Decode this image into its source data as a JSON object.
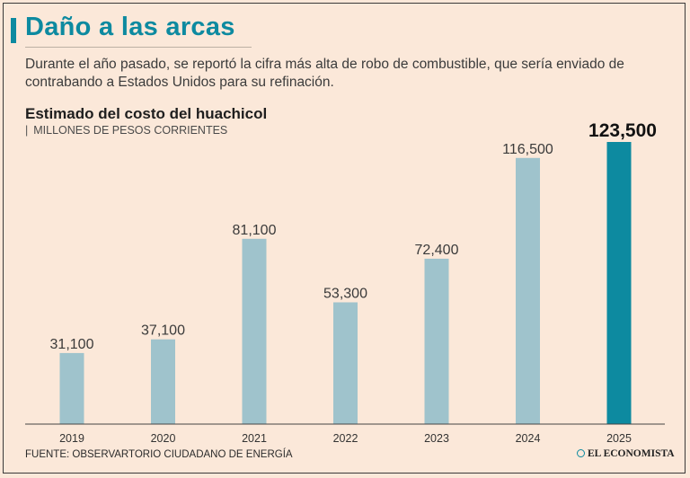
{
  "header": {
    "title": "Daño a las arcas",
    "subtitle": "Durante el año pasado, se reportó la cifra más alta de robo de combustible, que sería enviado de contrabando a Estados Unidos para su refinación."
  },
  "chart_data": {
    "type": "bar",
    "title": "Estimado del costo del huachicol",
    "subtitle": "MILLONES DE PESOS CORRIENTES",
    "categories": [
      "2019",
      "2020",
      "2021",
      "2022",
      "2023",
      "2024",
      "2025"
    ],
    "values": [
      31100,
      37100,
      81100,
      53300,
      72400,
      116500,
      123500
    ],
    "labels": [
      "31,100",
      "37,100",
      "81,100",
      "53,300",
      "72,400",
      "116,500",
      "123,500"
    ],
    "highlight_index": 6,
    "colors": {
      "bar": "#9fc3cc",
      "highlight": "#0d8aa0",
      "axis": "#444444",
      "label": "#3a3a3a"
    },
    "grid": false,
    "legend": "none"
  },
  "footer": {
    "source": "FUENTE: OBSERVARTORIO CIUDADANO DE ENERGÍA",
    "brand": "EL ECONOMISTA"
  }
}
